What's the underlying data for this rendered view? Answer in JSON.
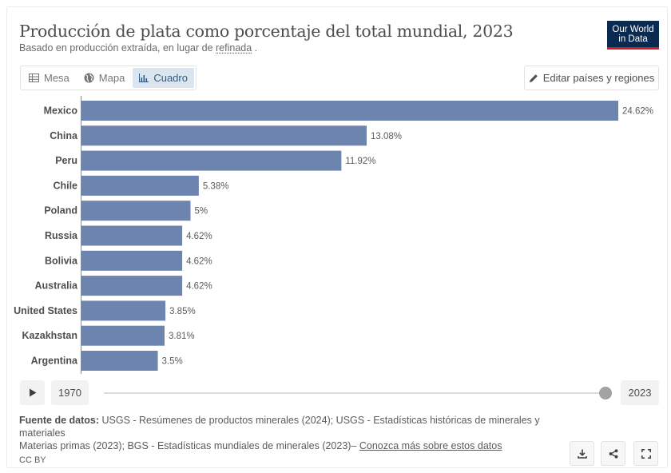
{
  "header": {
    "title": "Producción de plata como porcentaje del total mundial, 2023",
    "subtitle_prefix": "Basado en producción extraída, en lugar de ",
    "subtitle_link": "refinada",
    "subtitle_suffix": " .",
    "logo_line1": "Our World",
    "logo_line2": "in Data"
  },
  "tabs": [
    {
      "label": "Mesa",
      "icon": "table-icon"
    },
    {
      "label": "Mapa",
      "icon": "globe-icon"
    },
    {
      "label": "Cuadro",
      "icon": "bar-chart-icon",
      "active": true
    }
  ],
  "edit_button": {
    "label": "Editar países y regiones",
    "icon": "pencil-icon"
  },
  "chart_data": {
    "type": "bar",
    "orientation": "horizontal",
    "title": "Producción de plata como porcentaje del total mundial, 2023",
    "categories": [
      "Mexico",
      "China",
      "Peru",
      "Chile",
      "Poland",
      "Russia",
      "Bolivia",
      "Australia",
      "United States",
      "Kazakhstan",
      "Argentina"
    ],
    "values": [
      24.62,
      13.08,
      11.92,
      5.38,
      5,
      4.62,
      4.62,
      4.62,
      3.85,
      3.81,
      3.5
    ],
    "labels": [
      "24.62%",
      "13.08%",
      "11.92%",
      "5.38%",
      "5%",
      "4.62%",
      "4.62%",
      "4.62%",
      "3.85%",
      "3.81%",
      "3.5%"
    ],
    "xlim": [
      0,
      24.62
    ],
    "unit": "%",
    "bar_color": "#6d84ae"
  },
  "timeline": {
    "start_year": "1970",
    "end_year": "2023"
  },
  "footer": {
    "sources_label": "Fuente de datos:",
    "sources_line1": " USGS - Resúmenes de productos minerales (2024); USGS - Estadísticas históricas de minerales y materiales",
    "sources_line2": "Materias primas (2023); BGS - Estadísticas mundiales de minerales (2023)– ",
    "learn_more": "Conozca más sobre estos datos",
    "license": "CC BY"
  },
  "actions": [
    {
      "name": "download-button",
      "icon": "download-icon"
    },
    {
      "name": "share-button",
      "icon": "share-icon"
    },
    {
      "name": "fullscreen-button",
      "icon": "fullscreen-icon"
    }
  ]
}
